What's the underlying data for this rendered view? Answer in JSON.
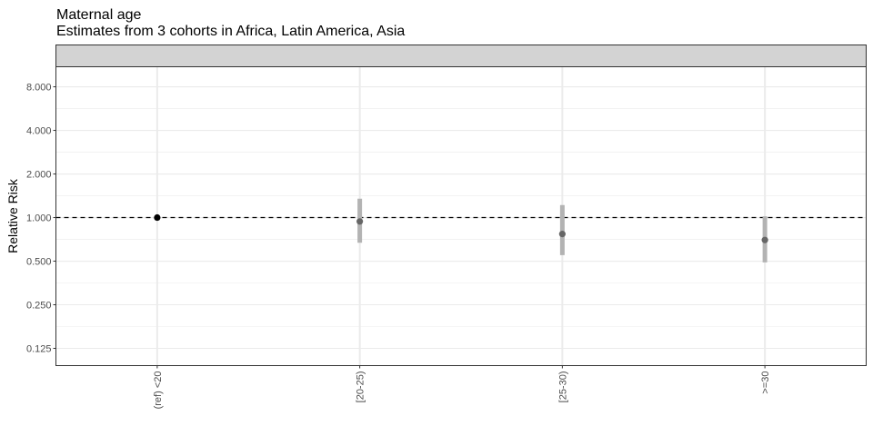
{
  "chart_data": {
    "type": "scatter",
    "title": "Maternal age",
    "subtitle": "Estimates from 3 cohorts in Africa, Latin America, Asia",
    "facet_strip_label": "",
    "xlabel": "",
    "ylabel": "Relative Risk",
    "y_scale": "log2",
    "ylim": [
      0.095,
      11
    ],
    "y_ticks": [
      0.125,
      0.25,
      0.5,
      1,
      2,
      4,
      8
    ],
    "y_tick_labels": [
      "0.125",
      "0.250",
      "0.500",
      "1.000",
      "2.000",
      "4.000",
      "8.000"
    ],
    "categories": [
      "(ref) <20",
      "[20-25)",
      "[25-30)",
      ">=30"
    ],
    "reference_line": 1,
    "grid": true,
    "legend": "none",
    "points": [
      {
        "category": "(ref) <20",
        "estimate": 1.0,
        "ci_lower": null,
        "ci_upper": null,
        "reference": true
      },
      {
        "category": "[20-25)",
        "estimate": 0.94,
        "ci_lower": 0.67,
        "ci_upper": 1.35,
        "reference": false
      },
      {
        "category": "[25-30)",
        "estimate": 0.77,
        "ci_lower": 0.55,
        "ci_upper": 1.22,
        "reference": false
      },
      {
        "category": ">=30",
        "estimate": 0.7,
        "ci_lower": 0.49,
        "ci_upper": 1.02,
        "reference": false
      }
    ],
    "colors": {
      "reference_point": "#000000",
      "estimate_point": "#666666",
      "ci_bar": "#b3b3b3",
      "strip_fill": "#d3d3d3",
      "grid": "#ebebeb",
      "panel_border": "#333333"
    }
  }
}
